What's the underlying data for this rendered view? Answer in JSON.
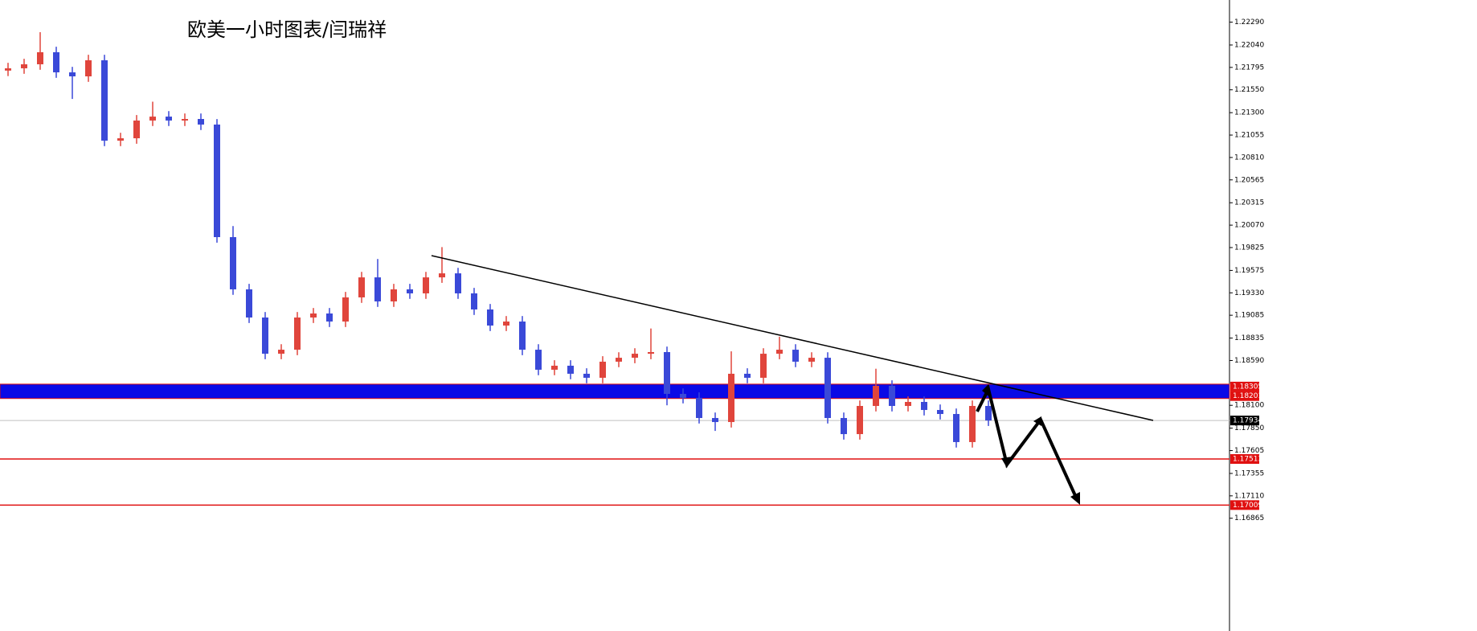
{
  "chart_data": {
    "type": "candlestick",
    "title": "欧美一小时图表/闫瑞祥",
    "up_color": "#e0453c",
    "down_color": "#3a49d8",
    "open": [
      1.2176,
      1.21785,
      1.21829,
      1.21961,
      1.21741,
      1.21697,
      1.21873,
      1.20994,
      1.2102,
      1.21214,
      1.21257,
      1.21214,
      1.21231,
      1.2117,
      1.19939,
      1.19368,
      1.1906,
      1.18664,
      1.18708,
      1.1906,
      1.19104,
      1.19016,
      1.1928,
      1.19499,
      1.19236,
      1.19368,
      1.19324,
      1.19499,
      1.19543,
      1.19324,
      1.19148,
      1.18972,
      1.19016,
      1.18708,
      1.18489,
      1.18533,
      1.18445,
      1.18401,
      1.18577,
      1.1862,
      1.18664,
      1.18682,
      1.18225,
      1.18181,
      1.17961,
      1.17917,
      1.18445,
      1.18401,
      1.18664,
      1.18708,
      1.18577,
      1.1862,
      1.17961,
      1.17785,
      1.18093,
      1.18313,
      1.18093,
      1.18137,
      1.18049,
      1.18005,
      1.17698,
      1.18093
    ],
    "high": [
      1.21845,
      1.21889,
      1.2218,
      1.22021,
      1.21801,
      1.21933,
      1.21933,
      1.2108,
      1.21274,
      1.2142,
      1.21317,
      1.21291,
      1.21291,
      1.2123,
      1.2006,
      1.19428,
      1.1912,
      1.18768,
      1.1912,
      1.19164,
      1.19164,
      1.1934,
      1.19559,
      1.197,
      1.19428,
      1.19428,
      1.19559,
      1.1983,
      1.19603,
      1.19384,
      1.19208,
      1.19076,
      1.19076,
      1.18768,
      1.18593,
      1.18593,
      1.18505,
      1.18637,
      1.1868,
      1.18724,
      1.1894,
      1.18742,
      1.18285,
      1.18241,
      1.18021,
      1.1869,
      1.18505,
      1.18724,
      1.1885,
      1.18768,
      1.1868,
      1.1868,
      1.18021,
      1.18153,
      1.185,
      1.18373,
      1.18197,
      1.18197,
      1.18109,
      1.18065,
      1.18153,
      1.18153
    ],
    "low": [
      1.217,
      1.21725,
      1.21769,
      1.21681,
      1.2145,
      1.21637,
      1.20934,
      1.20934,
      1.2096,
      1.21154,
      1.21154,
      1.21154,
      1.2111,
      1.19879,
      1.19308,
      1.19,
      1.18604,
      1.18604,
      1.18648,
      1.19,
      1.18956,
      1.18956,
      1.1922,
      1.19176,
      1.19176,
      1.19264,
      1.19264,
      1.19439,
      1.19264,
      1.19088,
      1.18912,
      1.18912,
      1.18648,
      1.18429,
      1.18429,
      1.18385,
      1.18341,
      1.18341,
      1.18517,
      1.1856,
      1.18604,
      1.181,
      1.18121,
      1.17901,
      1.1782,
      1.17857,
      1.18341,
      1.18341,
      1.18604,
      1.18517,
      1.18517,
      1.17901,
      1.17725,
      1.17725,
      1.18033,
      1.18033,
      1.18033,
      1.17989,
      1.17945,
      1.17638,
      1.17638,
      1.17874
    ],
    "close": [
      1.21785,
      1.21829,
      1.21961,
      1.21741,
      1.21697,
      1.21873,
      1.20994,
      1.2102,
      1.21214,
      1.21257,
      1.21214,
      1.21231,
      1.2117,
      1.19939,
      1.19368,
      1.1906,
      1.18664,
      1.18708,
      1.1906,
      1.19104,
      1.19016,
      1.1928,
      1.19499,
      1.19236,
      1.19368,
      1.19324,
      1.19499,
      1.19543,
      1.19324,
      1.19148,
      1.18972,
      1.19016,
      1.18708,
      1.18489,
      1.18533,
      1.18445,
      1.18401,
      1.18577,
      1.1862,
      1.18664,
      1.18682,
      1.18225,
      1.18181,
      1.17961,
      1.17917,
      1.18445,
      1.18401,
      1.18664,
      1.18708,
      1.18577,
      1.1862,
      1.17961,
      1.17785,
      1.18093,
      1.18313,
      1.18093,
      1.18137,
      1.18049,
      1.18005,
      1.17698,
      1.18093,
      1.17934
    ],
    "ylim": [
      1.15632,
      1.22532
    ],
    "yticks": [
      {
        "value": 1.2229,
        "label": "1.22290"
      },
      {
        "value": 1.2204,
        "label": "1.22040"
      },
      1.21795,
      {
        "value": 1.2155,
        "label": "1.21550"
      },
      {
        "value": 1.213,
        "label": "1.21300"
      },
      1.21055,
      {
        "value": 1.2081,
        "label": "1.20810"
      },
      1.20565,
      1.20315,
      {
        "value": 1.2007,
        "label": "1.20070"
      },
      1.19825,
      1.19575,
      {
        "value": 1.1933,
        "label": "1.19330"
      },
      1.19085,
      1.18835,
      {
        "value": 1.1859,
        "label": "1.18590"
      },
      {
        "value": 1.181,
        "label": "1.18100"
      },
      {
        "value": 1.1785,
        "label": "1.17850"
      },
      1.17605,
      1.17355,
      {
        "value": 1.1711,
        "label": "1.17110"
      },
      1.16865
    ],
    "zone": {
      "high": 1.18305,
      "low": 1.18201,
      "color": "#0a0ae6",
      "label_color": "#e01010"
    },
    "current": {
      "value": 1.17934,
      "color": "#000000"
    },
    "levels": [
      {
        "value": 1.17513,
        "color": "#e01010"
      },
      {
        "value": 1.17009,
        "color": "#e01010"
      }
    ]
  }
}
